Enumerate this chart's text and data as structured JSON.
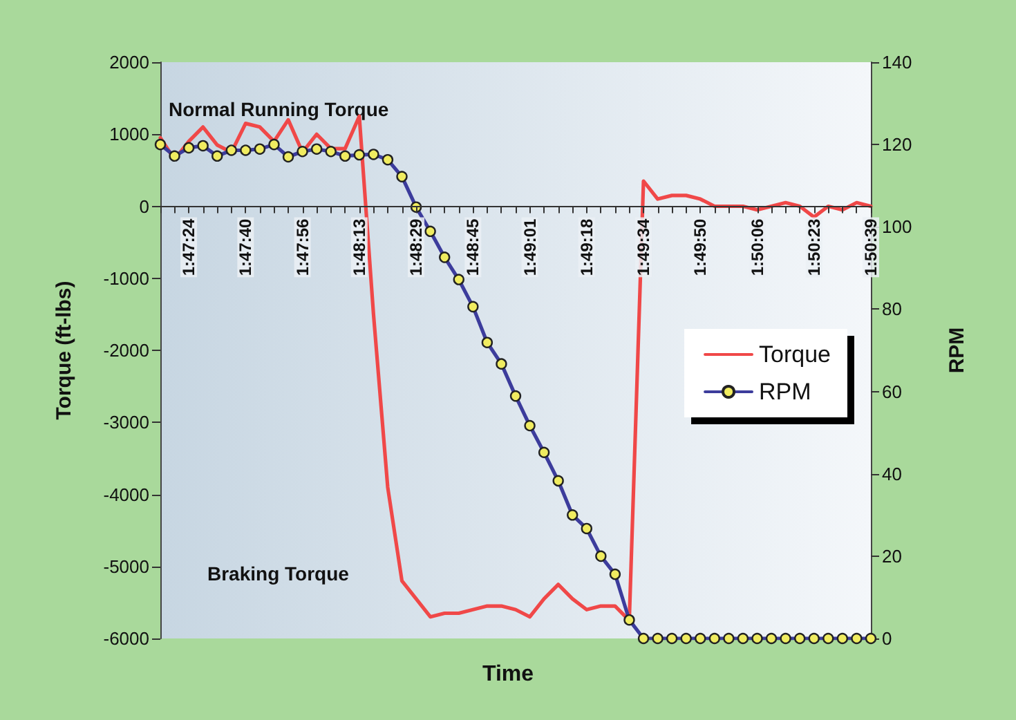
{
  "chart_data": {
    "type": "line",
    "xlabel": "Time",
    "ylabel": "Torque (ft-lbs)",
    "y2label": "RPM",
    "categories": [
      null,
      null,
      "1:47:24",
      null,
      null,
      null,
      "1:47:40",
      null,
      null,
      null,
      "1:47:56",
      null,
      null,
      null,
      "1:48:13",
      null,
      null,
      null,
      "1:48:29",
      null,
      null,
      null,
      "1:48:45",
      null,
      null,
      null,
      "1:49:01",
      null,
      null,
      null,
      "1:49:18",
      null,
      null,
      null,
      "1:49:34",
      null,
      null,
      null,
      "1:49:50",
      null,
      null,
      null,
      "1:50:06",
      null,
      null,
      null,
      "1:50:23",
      null,
      null,
      null,
      "1:50:39"
    ],
    "series": [
      {
        "name": "Torque",
        "color": "#f04848",
        "marker": "none",
        "values": [
          950,
          650,
          900,
          1100,
          850,
          750,
          1150,
          1100,
          900,
          1200,
          750,
          1000,
          800,
          800,
          1250,
          -1500,
          -3900,
          -5200,
          -5450,
          -5700,
          -5650,
          -5650,
          -5600,
          -5550,
          -5550,
          -5600,
          -5700,
          -5450,
          -5250,
          -5450,
          -5600,
          -5550,
          -5550,
          -5750,
          350,
          100,
          150,
          150,
          100,
          0,
          0,
          0,
          -50,
          0,
          50,
          0,
          -150,
          0,
          -50,
          50,
          0
        ]
      },
      {
        "name": "RPM",
        "color": "#3c3c9c",
        "marker": "circle",
        "axis": "y2",
        "values": [
          120,
          117.2,
          119.2,
          119.7,
          117.2,
          118.6,
          118.6,
          118.9,
          120,
          117,
          118.3,
          118.9,
          118.3,
          117.2,
          117.5,
          117.6,
          116.3,
          112.2,
          104.8,
          98.9,
          92.6,
          87.2,
          80.6,
          71.9,
          66.7,
          58.9,
          51.7,
          45.2,
          38.3,
          30,
          26.7,
          20,
          15.6,
          4.5,
          0,
          0,
          0,
          0,
          0,
          0,
          0,
          0,
          0,
          0,
          0,
          0,
          0,
          0,
          0,
          0,
          0
        ]
      }
    ],
    "ylim": [
      -6000,
      2000
    ],
    "yticks": [
      -6000,
      -5000,
      -4000,
      -3000,
      -2000,
      -1000,
      0,
      1000,
      2000
    ],
    "y2lim": [
      0,
      140
    ],
    "y2ticks": [
      0,
      20,
      40,
      60,
      80,
      100,
      120,
      140
    ],
    "legend": "right",
    "annotations": [
      "Normal Running Torque",
      "Braking Torque"
    ]
  }
}
